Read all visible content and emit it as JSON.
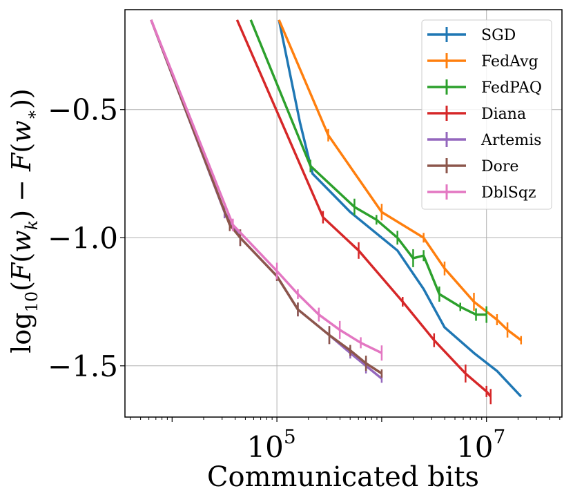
{
  "chart_data": {
    "type": "line",
    "xlabel": "Communicated bits",
    "ylabel": "log10(F(w_k) − F(w_*))",
    "xscale": "log",
    "xlim_log10": [
      3.55,
      7.72
    ],
    "ylim": [
      -1.7,
      -0.11
    ],
    "grid": true,
    "legend_position": "top-right",
    "x_ticks": [
      {
        "log10": 5,
        "base": "10",
        "exp": "5"
      },
      {
        "log10": 7,
        "base": "10",
        "exp": "7"
      }
    ],
    "y_ticks": [
      {
        "value": -0.5,
        "label": "−0.5"
      },
      {
        "value": -1.0,
        "label": "−1.0"
      },
      {
        "value": -1.5,
        "label": "−1.5"
      }
    ],
    "series": [
      {
        "name": "SGD",
        "color": "#1f77b4",
        "error_bars": false,
        "log10_x": [
          5.02,
          5.22,
          5.34,
          5.7,
          6.15,
          6.4,
          6.6,
          6.88,
          7.1,
          7.33
        ],
        "y": [
          -0.15,
          -0.55,
          -0.75,
          -0.9,
          -1.05,
          -1.2,
          -1.35,
          -1.45,
          -1.52,
          -1.62
        ]
      },
      {
        "name": "FedAvg",
        "color": "#ff7f0e",
        "error_bars": true,
        "log10_x": [
          5.02,
          5.49,
          6.0,
          6.4,
          6.6,
          6.88,
          7.1,
          7.2,
          7.33
        ],
        "y": [
          -0.15,
          -0.6,
          -0.9,
          -1.0,
          -1.12,
          -1.25,
          -1.32,
          -1.36,
          -1.4
        ]
      },
      {
        "name": "FedPAQ",
        "color": "#2ca02c",
        "error_bars": true,
        "log10_x": [
          4.75,
          5.32,
          5.74,
          5.95,
          6.15,
          6.3,
          6.4,
          6.55,
          6.75,
          6.9,
          7.0
        ],
        "y": [
          -0.15,
          -0.72,
          -0.88,
          -0.93,
          -1.0,
          -1.08,
          -1.07,
          -1.22,
          -1.27,
          -1.3,
          -1.3
        ]
      },
      {
        "name": "Diana",
        "color": "#d62728",
        "error_bars": true,
        "log10_x": [
          4.62,
          5.44,
          5.78,
          6.2,
          6.5,
          6.8,
          7.0,
          7.04
        ],
        "y": [
          -0.15,
          -0.92,
          -1.05,
          -1.25,
          -1.4,
          -1.53,
          -1.6,
          -1.62
        ]
      },
      {
        "name": "Artemis",
        "color": "#9467bd",
        "error_bars": true,
        "log10_x": [
          3.8,
          4.5,
          4.65,
          5.0,
          5.2,
          5.5,
          5.7,
          5.85,
          6.0
        ],
        "y": [
          -0.15,
          -0.9,
          -1.0,
          -1.15,
          -1.28,
          -1.38,
          -1.45,
          -1.5,
          -1.55
        ]
      },
      {
        "name": "Dore",
        "color": "#8c564b",
        "error_bars": true,
        "log10_x": [
          3.8,
          4.55,
          4.65,
          5.0,
          5.2,
          5.5,
          5.7,
          5.85,
          6.0
        ],
        "y": [
          -0.15,
          -0.95,
          -1.0,
          -1.15,
          -1.28,
          -1.38,
          -1.44,
          -1.49,
          -1.53
        ]
      },
      {
        "name": "DblSqz",
        "color": "#e377c2",
        "error_bars": true,
        "log10_x": [
          3.8,
          4.58,
          5.0,
          5.2,
          5.4,
          5.6,
          5.8,
          6.0
        ],
        "y": [
          -0.15,
          -0.95,
          -1.13,
          -1.22,
          -1.3,
          -1.36,
          -1.41,
          -1.45
        ]
      }
    ]
  }
}
